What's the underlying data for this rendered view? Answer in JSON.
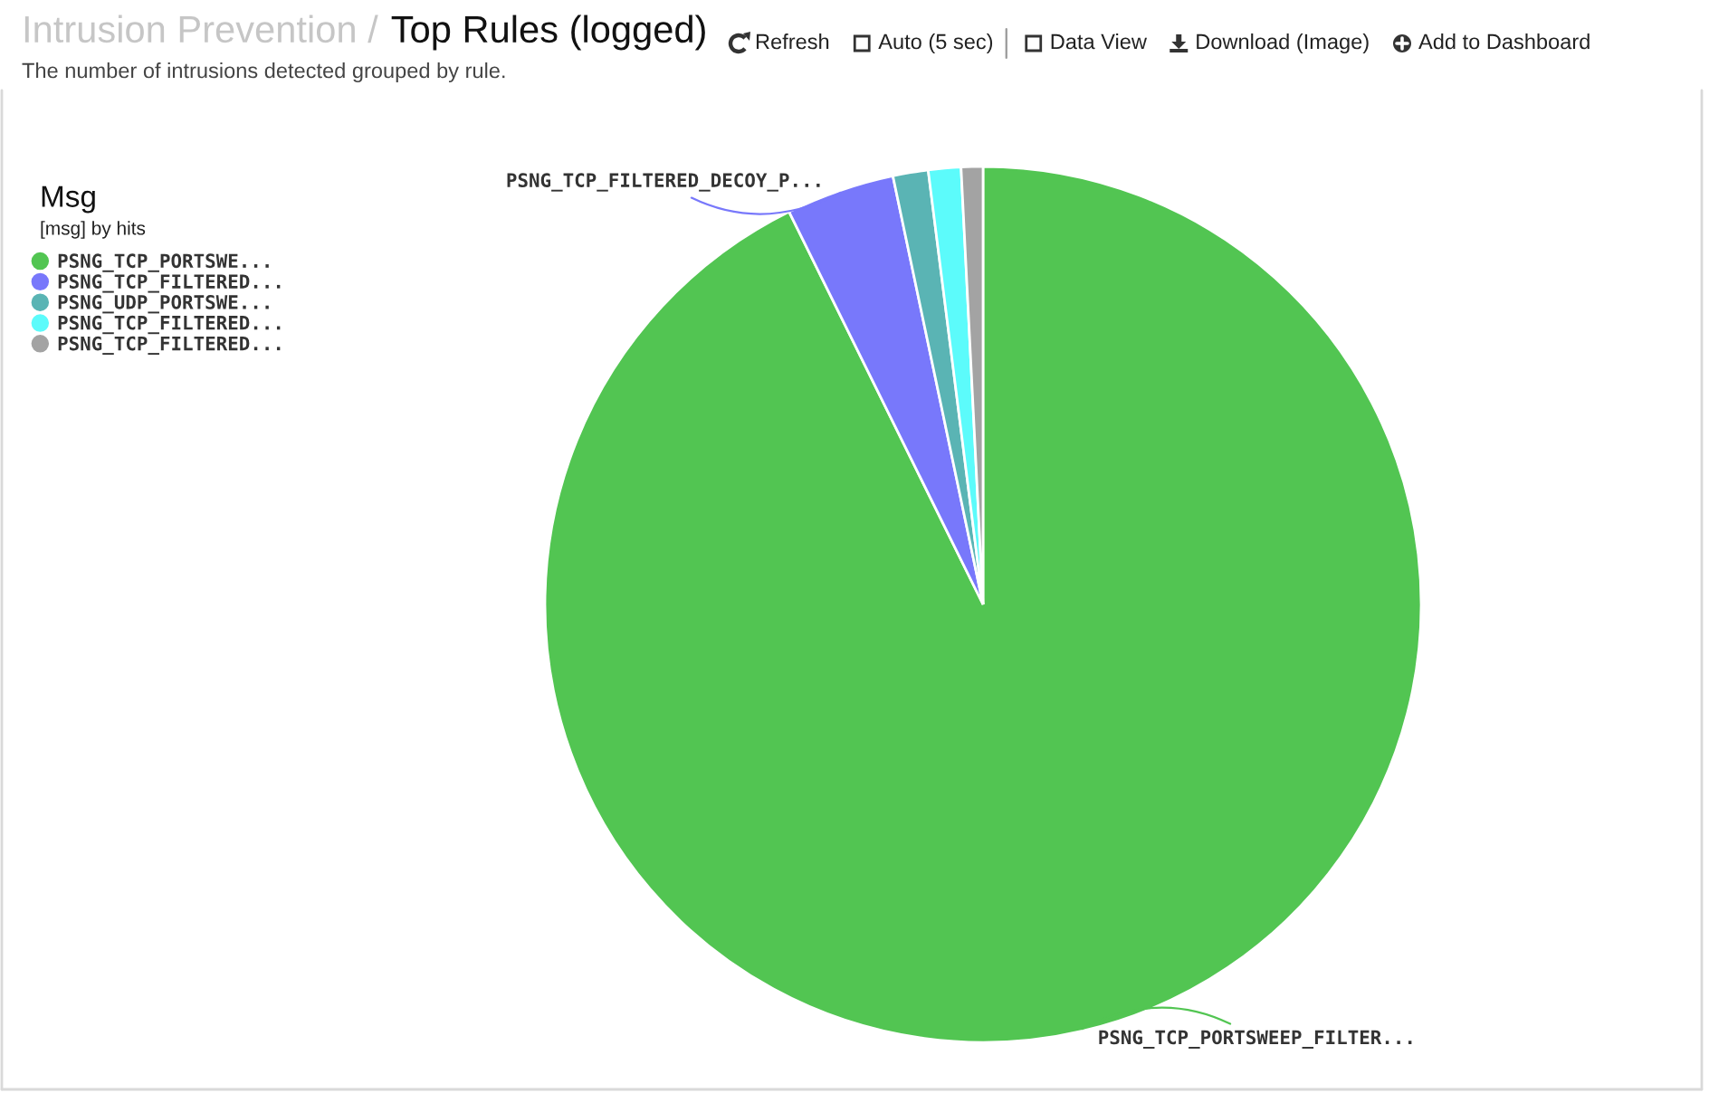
{
  "chart_data": {
    "type": "pie",
    "title": "Top Rules (logged)",
    "subtitle": "The number of intrusions detected grouped by rule.",
    "categories": [
      "PSNG_TCP_PORTSWE...",
      "PSNG_TCP_FILTERED...",
      "PSNG_UDP_PORTSWE...",
      "PSNG_TCP_FILTERED...",
      "PSNG_TCP_FILTERED..."
    ],
    "values": [
      92.7,
      4.0,
      1.3,
      1.2,
      0.8
    ],
    "colors": [
      "#52c552",
      "#7878fb",
      "#5ab4b4",
      "#5cfbfb",
      "#a3a3a3"
    ],
    "value_labels": [
      "PSNG_TCP_PORTSWEEP_FILTER...",
      "PSNG_TCP_FILTERED_DECOY_P...",
      null,
      null,
      null
    ],
    "legend": "top left",
    "legend_title": "Msg",
    "annotations": [
      "Intrusion Prevention /",
      "[msg] by hits",
      "Refresh",
      "Auto (5 sec)",
      "Data View",
      "Download (Image)",
      "Add to Dashboard"
    ]
  }
}
